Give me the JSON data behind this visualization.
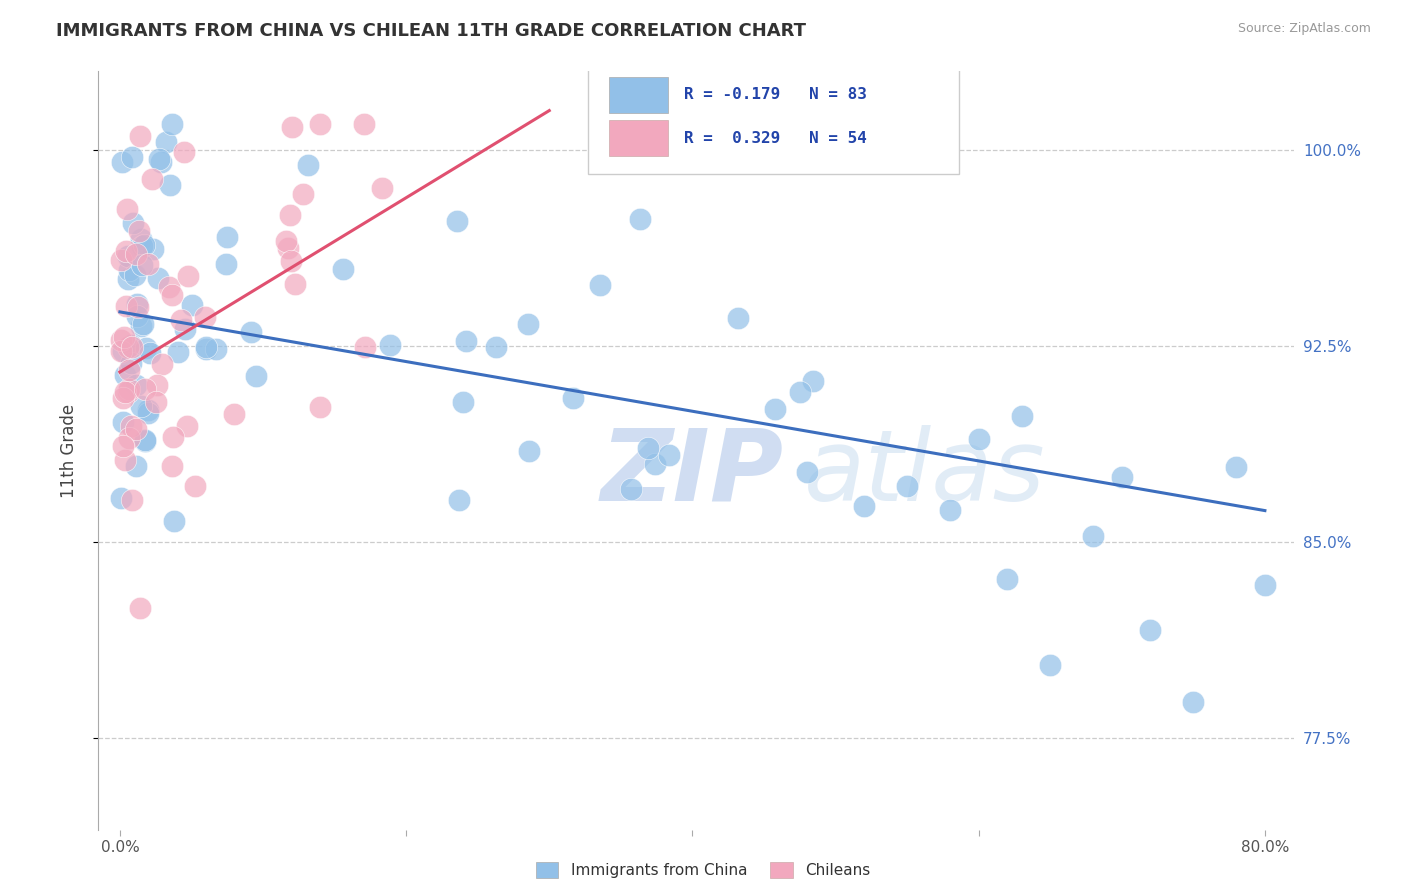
{
  "title": "IMMIGRANTS FROM CHINA VS CHILEAN 11TH GRADE CORRELATION CHART",
  "source": "Source: ZipAtlas.com",
  "ylabel": "11th Grade",
  "blue_color": "#92C0E8",
  "pink_color": "#F2A8BE",
  "trend_blue": "#3C6EBE",
  "trend_pink": "#E05070",
  "legend_r_blue": "R = -0.179",
  "legend_n_blue": "N = 83",
  "legend_r_pink": "R =  0.329",
  "legend_n_pink": "N = 54",
  "legend_label_blue": "Immigrants from China",
  "legend_label_pink": "Chileans",
  "xlim": [
    -1.5,
    82
  ],
  "ylim": [
    74.0,
    103.0
  ],
  "yticks": [
    77.5,
    85.0,
    92.5,
    100.0
  ],
  "xticks": [
    0,
    20,
    40,
    60,
    80
  ],
  "blue_trend_x": [
    0,
    80
  ],
  "blue_trend_y": [
    93.8,
    86.2
  ],
  "pink_trend_x": [
    0,
    30
  ],
  "pink_trend_y": [
    91.5,
    101.5
  ],
  "watermark_zip": "ZIP",
  "watermark_atlas": "atlas"
}
